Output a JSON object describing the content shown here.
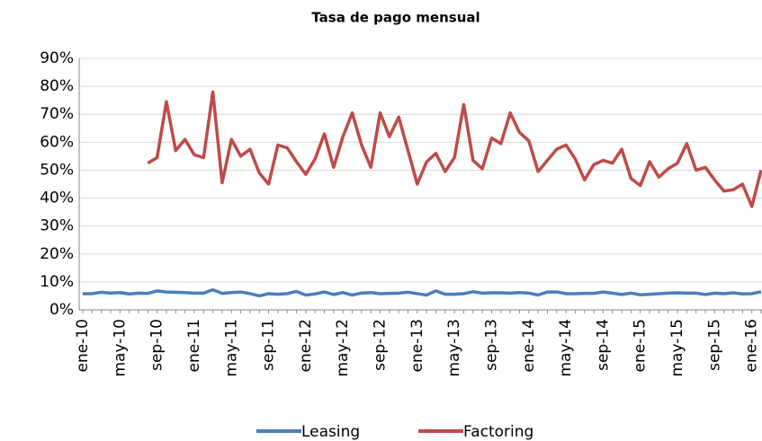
{
  "chart_data": {
    "type": "line",
    "title": "Tasa de pago mensual",
    "categories": [
      "ene-10",
      null,
      null,
      null,
      "may-10",
      null,
      null,
      null,
      "sep-10",
      null,
      null,
      null,
      "ene-11",
      null,
      null,
      null,
      "may-11",
      null,
      null,
      null,
      "sep-11",
      null,
      null,
      null,
      "ene-12",
      null,
      null,
      null,
      "may-12",
      null,
      null,
      null,
      "sep-12",
      null,
      null,
      null,
      "ene-13",
      null,
      null,
      null,
      "may-13",
      null,
      null,
      null,
      "sep-13",
      null,
      null,
      null,
      "ene-14",
      null,
      null,
      null,
      "may-14",
      null,
      null,
      null,
      "sep-14",
      null,
      null,
      null,
      "ene-15",
      null,
      null,
      null,
      "may-15",
      null,
      null,
      null,
      "sep-15",
      null,
      null,
      null,
      "ene-16",
      null
    ],
    "series": [
      {
        "name": "Leasing",
        "color": "#4a7ebb",
        "values": [
          5.8,
          5.8,
          6.3,
          6,
          6.2,
          5.7,
          6,
          5.9,
          6.8,
          6.4,
          6.3,
          6.2,
          6,
          6,
          7.2,
          5.9,
          6.2,
          6.4,
          5.8,
          5,
          5.8,
          5.6,
          5.8,
          6.6,
          5.3,
          5.7,
          6.4,
          5.5,
          6.2,
          5.3,
          6,
          6.2,
          5.8,
          5.9,
          6,
          6.3,
          5.8,
          5.3,
          6.8,
          5.6,
          5.6,
          5.8,
          6.5,
          6,
          6.1,
          6.1,
          6,
          6.2,
          6,
          5.3,
          6.4,
          6.4,
          5.8,
          5.8,
          5.9,
          5.9,
          6.4,
          6,
          5.5,
          6,
          5.4,
          5.6,
          5.8,
          6,
          6.1,
          6,
          6,
          5.5,
          6,
          5.8,
          6.1,
          5.7,
          5.8,
          6.5
        ]
      },
      {
        "name": "Factoring",
        "color": "#be4b48",
        "values": [
          null,
          null,
          null,
          null,
          null,
          null,
          null,
          52.5,
          54.5,
          74.5,
          57,
          61,
          55.5,
          54.5,
          78,
          45.5,
          61,
          55,
          57.5,
          49,
          45,
          59,
          58,
          53,
          48.5,
          54,
          63,
          51,
          62,
          70.5,
          59,
          51,
          70.5,
          62,
          69,
          57,
          45,
          53,
          56,
          49.5,
          54.5,
          73.5,
          53.5,
          50.5,
          61.5,
          59.5,
          70.5,
          63.5,
          60.5,
          49.5,
          53.5,
          57.5,
          59,
          54,
          46.5,
          52,
          53.5,
          52.5,
          57.5,
          47,
          44.5,
          53,
          47.5,
          50.5,
          52.5,
          59.5,
          50,
          51,
          46.5,
          42.5,
          43,
          45,
          37,
          50
        ]
      }
    ],
    "ylim": [
      0,
      90
    ],
    "yticks": [
      {
        "value": 0,
        "label": "0%"
      },
      {
        "value": 10,
        "label": "10%"
      },
      {
        "value": 20,
        "label": "20%"
      },
      {
        "value": 30,
        "label": "30%"
      },
      {
        "value": 40,
        "label": "40%"
      },
      {
        "value": 50,
        "label": "50%"
      },
      {
        "value": 60,
        "label": "60%"
      },
      {
        "value": 70,
        "label": "70%"
      },
      {
        "value": 80,
        "label": "80%"
      },
      {
        "value": 90,
        "label": "90%"
      }
    ],
    "grid": true,
    "legend": "bottom"
  }
}
